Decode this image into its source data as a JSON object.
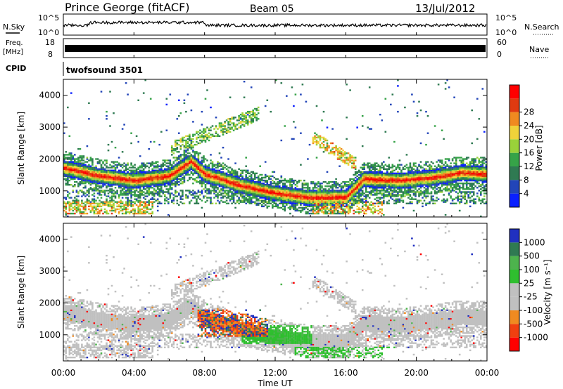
{
  "header": {
    "station": "Prince George (fitACF)",
    "beam": "Beam 05",
    "date": "13/Jul/2012"
  },
  "side_labels": {
    "nsky": "N.Sky",
    "freq_top": "Freq.",
    "freq_unit": "[MHz]",
    "cpid": "CPID",
    "nsearch": "N.Search",
    "nave": "Nave",
    "noise_tick_hi": "10^5",
    "noise_tick_lo": "10^0",
    "freq_tick_hi": "18",
    "freq_tick_lo": "8",
    "nave_tick_hi": "60",
    "nave_tick_lo": "0"
  },
  "cpid_label": "twofsound 3501",
  "colors": {
    "power": [
      "#0a20ff",
      "#2245b8",
      "#2f7a52",
      "#36a348",
      "#9ad23a",
      "#f0d23a",
      "#f08a20",
      "#e03a10",
      "#ff0000"
    ],
    "velocity": [
      "#ff0000",
      "#f04010",
      "#f08a20",
      "#c0c0c0",
      "#c0c0c0",
      "#2fbf2f",
      "#4db34d",
      "#2f7a52",
      "#2030c0"
    ]
  },
  "chart_data": [
    {
      "type": "heatmap",
      "panel": "power",
      "ylabel": "Slant Range [km]",
      "ylim": [
        180,
        4500
      ],
      "yticks": [
        "1000",
        "2000",
        "3000",
        "4000"
      ],
      "colorbar": {
        "label": "Power [dB]",
        "ticks": [
          "4",
          "8",
          "12",
          "16",
          "20",
          "24",
          "28"
        ],
        "range": [
          0,
          30
        ]
      }
    },
    {
      "type": "heatmap",
      "panel": "velocity",
      "ylabel": "Slant Range [km]",
      "ylim": [
        180,
        4500
      ],
      "yticks": [
        "1000",
        "2000",
        "3000",
        "4000"
      ],
      "colorbar": {
        "label": "Velocity [m s⁻¹]",
        "ticks": [
          "-1000",
          "-500",
          "-100",
          "-25",
          "25",
          "100",
          "500",
          "1000"
        ]
      }
    }
  ],
  "time_axis": {
    "label": "Time UT",
    "ticks": [
      "00:00",
      "04:00",
      "08:00",
      "12:00",
      "16:00",
      "20:00",
      "00:00"
    ]
  }
}
